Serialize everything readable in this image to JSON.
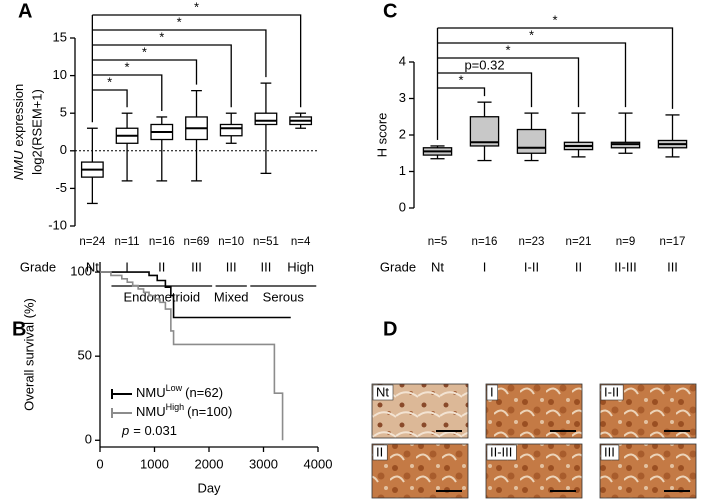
{
  "panel_labels": [
    "A",
    "B",
    "C",
    "D"
  ],
  "chart_data": [
    {
      "type": "box",
      "ylabel_gene": "NMU",
      "ylabel": "expression",
      "ylabel2": "log2(RSEM+1)",
      "grade_label": "Grade",
      "categories": [
        "Nt",
        "I",
        "II",
        "III",
        "III",
        "III",
        "High"
      ],
      "n_labels": [
        "n=24",
        "n=11",
        "n=16",
        "n=69",
        "n=10",
        "n=51",
        "n=4"
      ],
      "groups": [
        null,
        "Endometrioid",
        "Endometrioid",
        "Endometrioid",
        "Mixed",
        "Serous",
        "Serous"
      ],
      "significance": [
        null,
        "*",
        "*",
        "*",
        "*",
        "*",
        "*"
      ],
      "boxes": [
        {
          "min": -7,
          "q1": -3.5,
          "median": -2.5,
          "q3": -1.5,
          "max": 3
        },
        {
          "min": -4,
          "q1": 1,
          "median": 2,
          "q3": 3,
          "max": 5
        },
        {
          "min": -4,
          "q1": 1.5,
          "median": 2.5,
          "q3": 3.5,
          "max": 4.5
        },
        {
          "min": -4,
          "q1": 1.5,
          "median": 3,
          "q3": 4.5,
          "max": 8
        },
        {
          "min": 1,
          "q1": 2,
          "median": 3,
          "q3": 3.5,
          "max": 5
        },
        {
          "min": -3,
          "q1": 3.5,
          "median": 4,
          "q3": 5,
          "max": 9
        },
        {
          "min": 3,
          "q1": 3.5,
          "median": 4,
          "q3": 4.5,
          "max": 5
        }
      ],
      "box_color": "#ffffff",
      "zero_line": true,
      "ylim": [
        -10,
        15
      ],
      "yticks": [
        -10,
        -5,
        0,
        5,
        10,
        15
      ]
    },
    {
      "type": "km",
      "xlabel": "Day",
      "ylabel": "Overall survival (%)",
      "xlim": [
        0,
        4000
      ],
      "xticks": [
        0,
        1000,
        2000,
        3000,
        4000
      ],
      "ylim": [
        -4,
        106
      ],
      "yticks": [
        0,
        50,
        100
      ],
      "p_symbol": "p",
      "p_value": "= 0.031",
      "series": [
        {
          "name": "NMU",
          "name_sup": "Low",
          "n_label": "(n=62)",
          "color": "#000000",
          "x": [
            0,
            900,
            1050,
            1200,
            1300,
            1350,
            3500
          ],
          "values": [
            100,
            98,
            95,
            91,
            86,
            73,
            73
          ]
        },
        {
          "name": "NMU",
          "name_sup": "High",
          "n_label": "(n=100)",
          "color": "#8c8c8c",
          "x": [
            0,
            200,
            400,
            500,
            600,
            700,
            800,
            900,
            1000,
            1100,
            1200,
            1300,
            1350,
            3100,
            3200,
            3350
          ],
          "values": [
            100,
            98,
            96,
            94,
            92,
            90,
            88,
            86,
            84,
            82,
            78,
            65,
            57,
            57,
            28,
            0
          ]
        }
      ]
    },
    {
      "type": "box",
      "ylabel": "H score",
      "grade_label": "Grade",
      "categories": [
        "Nt",
        "I",
        "I-II",
        "II",
        "II-III",
        "III"
      ],
      "n_labels": [
        "n=5",
        "n=16",
        "n=23",
        "n=21",
        "n=9",
        "n=17"
      ],
      "significance": [
        null,
        "*",
        "p=0.32",
        "*",
        "*",
        "*"
      ],
      "boxes": [
        {
          "min": 1.35,
          "q1": 1.45,
          "median": 1.55,
          "q3": 1.65,
          "max": 1.7
        },
        {
          "min": 1.3,
          "q1": 1.7,
          "median": 1.8,
          "q3": 2.5,
          "max": 2.9
        },
        {
          "min": 1.3,
          "q1": 1.5,
          "median": 1.65,
          "q3": 2.15,
          "max": 2.6
        },
        {
          "min": 1.4,
          "q1": 1.6,
          "median": 1.7,
          "q3": 1.8,
          "max": 2.6
        },
        {
          "min": 1.5,
          "q1": 1.65,
          "median": 1.75,
          "q3": 1.8,
          "max": 2.6
        },
        {
          "min": 1.4,
          "q1": 1.65,
          "median": 1.75,
          "q3": 1.85,
          "max": 2.55
        }
      ],
      "box_color": "#c8c8c8",
      "ylim": [
        0,
        4
      ],
      "yticks": [
        0,
        1,
        2,
        3,
        4
      ]
    }
  ],
  "micrographs": {
    "labels": [
      "Nt",
      "I",
      "I-II",
      "II",
      "II-III",
      "III"
    ]
  }
}
